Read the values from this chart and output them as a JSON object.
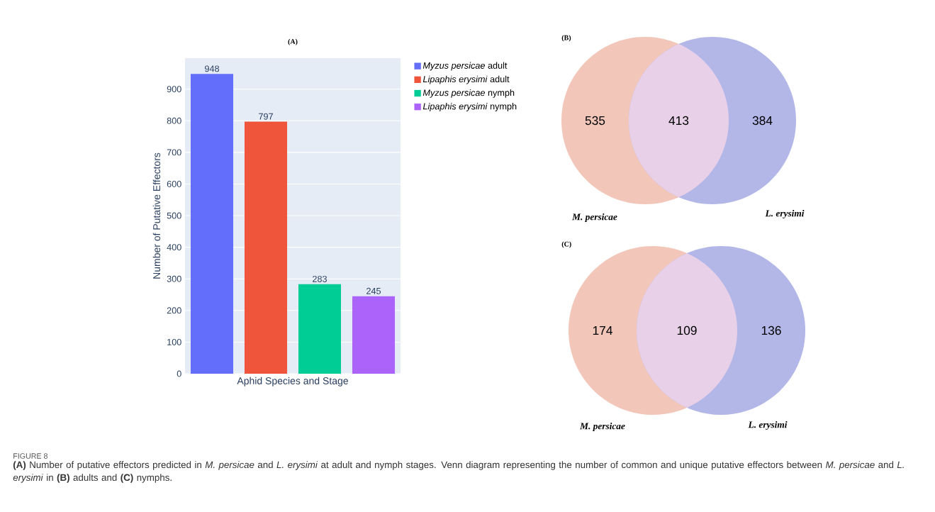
{
  "chart_data": [
    {
      "type": "bar",
      "title": "(A)",
      "xlabel": "Aphid Species and Stage",
      "ylabel": "Number of Putative Effectors",
      "categories": [
        null,
        null,
        null,
        null
      ],
      "series": [
        {
          "name": "*Myzus persicae* adult",
          "color": "#636efa",
          "values": [
            948,
            null,
            null,
            null
          ]
        },
        {
          "name": "*Lipaphis erysimi* adult",
          "color": "#ef553b",
          "values": [
            null,
            797,
            null,
            null
          ]
        },
        {
          "name": "*Myzus persicae* nymph",
          "color": "#00cc96",
          "values": [
            null,
            null,
            283,
            null
          ]
        },
        {
          "name": "*Lipaphis erysimi* nymph",
          "color": "#ab63fa",
          "values": [
            null,
            null,
            null,
            245
          ]
        }
      ],
      "ylim": [
        0,
        998
      ],
      "yticks": [
        0,
        100,
        200,
        300,
        400,
        500,
        600,
        700,
        800,
        900
      ],
      "grid": "y",
      "legend": "top right",
      "data_labels": true,
      "tick_labels": "y",
      "annotations": [
        "FIGURE 8",
        "**(A)** Number of putative effectors predicted in *M. persicae* and *L. erysimi* at adult and nymph stages. Venn diagram representing the number of common and unique putative effectors between *M. persicae* and *L. erysimi* in **(B)** adults and **(C)** nymphs."
      ]
    },
    {
      "type": "other",
      "title": "(B)",
      "categories": [
        "M. persicae",
        null,
        "L. erysimi"
      ],
      "values": [
        535,
        413,
        384
      ],
      "data_labels": true,
      "colors": [
        "#f2c6b9",
        "#e8d0e8",
        "#b3b7e8"
      ]
    },
    {
      "type": "other",
      "title": "(C)",
      "categories": [
        "M. persicae",
        null,
        "L. erysimi"
      ],
      "values": [
        174,
        109,
        136
      ],
      "data_labels": true,
      "colors": [
        "#f2c6b9",
        "#e8d0e8",
        "#b3b7e8"
      ]
    }
  ]
}
